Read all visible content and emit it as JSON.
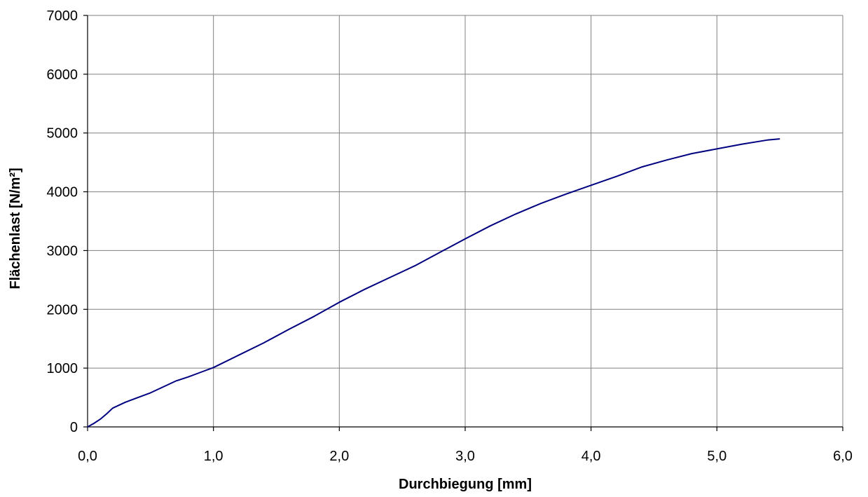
{
  "chart_data": {
    "type": "line",
    "title": "",
    "xlabel": "Durchbiegung [mm]",
    "ylabel": "Flächenlast [N/m²]",
    "xlim": [
      0,
      6
    ],
    "ylim": [
      0,
      7000
    ],
    "x_ticks": [
      0,
      1,
      2,
      3,
      4,
      5,
      6
    ],
    "x_tick_labels": [
      "0,0",
      "1,0",
      "2,0",
      "3,0",
      "4,0",
      "5,0",
      "6,0"
    ],
    "y_ticks": [
      0,
      1000,
      2000,
      3000,
      4000,
      5000,
      6000,
      7000
    ],
    "y_tick_labels": [
      "0",
      "1000",
      "2000",
      "3000",
      "4000",
      "5000",
      "6000",
      "7000"
    ],
    "grid": true,
    "legend": "none",
    "series": [
      {
        "color": "#000080",
        "x": [
          0.0,
          0.05,
          0.1,
          0.15,
          0.2,
          0.3,
          0.4,
          0.5,
          0.6,
          0.7,
          0.8,
          0.9,
          1.0,
          1.2,
          1.4,
          1.6,
          1.8,
          2.0,
          2.2,
          2.4,
          2.6,
          2.8,
          3.0,
          3.2,
          3.4,
          3.6,
          3.8,
          4.0,
          4.2,
          4.4,
          4.6,
          4.8,
          5.0,
          5.2,
          5.4,
          5.5
        ],
        "y": [
          0,
          60,
          130,
          220,
          320,
          420,
          500,
          580,
          680,
          780,
          850,
          930,
          1010,
          1220,
          1430,
          1660,
          1880,
          2120,
          2340,
          2540,
          2740,
          2970,
          3200,
          3420,
          3620,
          3800,
          3960,
          4110,
          4260,
          4420,
          4540,
          4650,
          4730,
          4810,
          4880,
          4900
        ]
      }
    ]
  }
}
